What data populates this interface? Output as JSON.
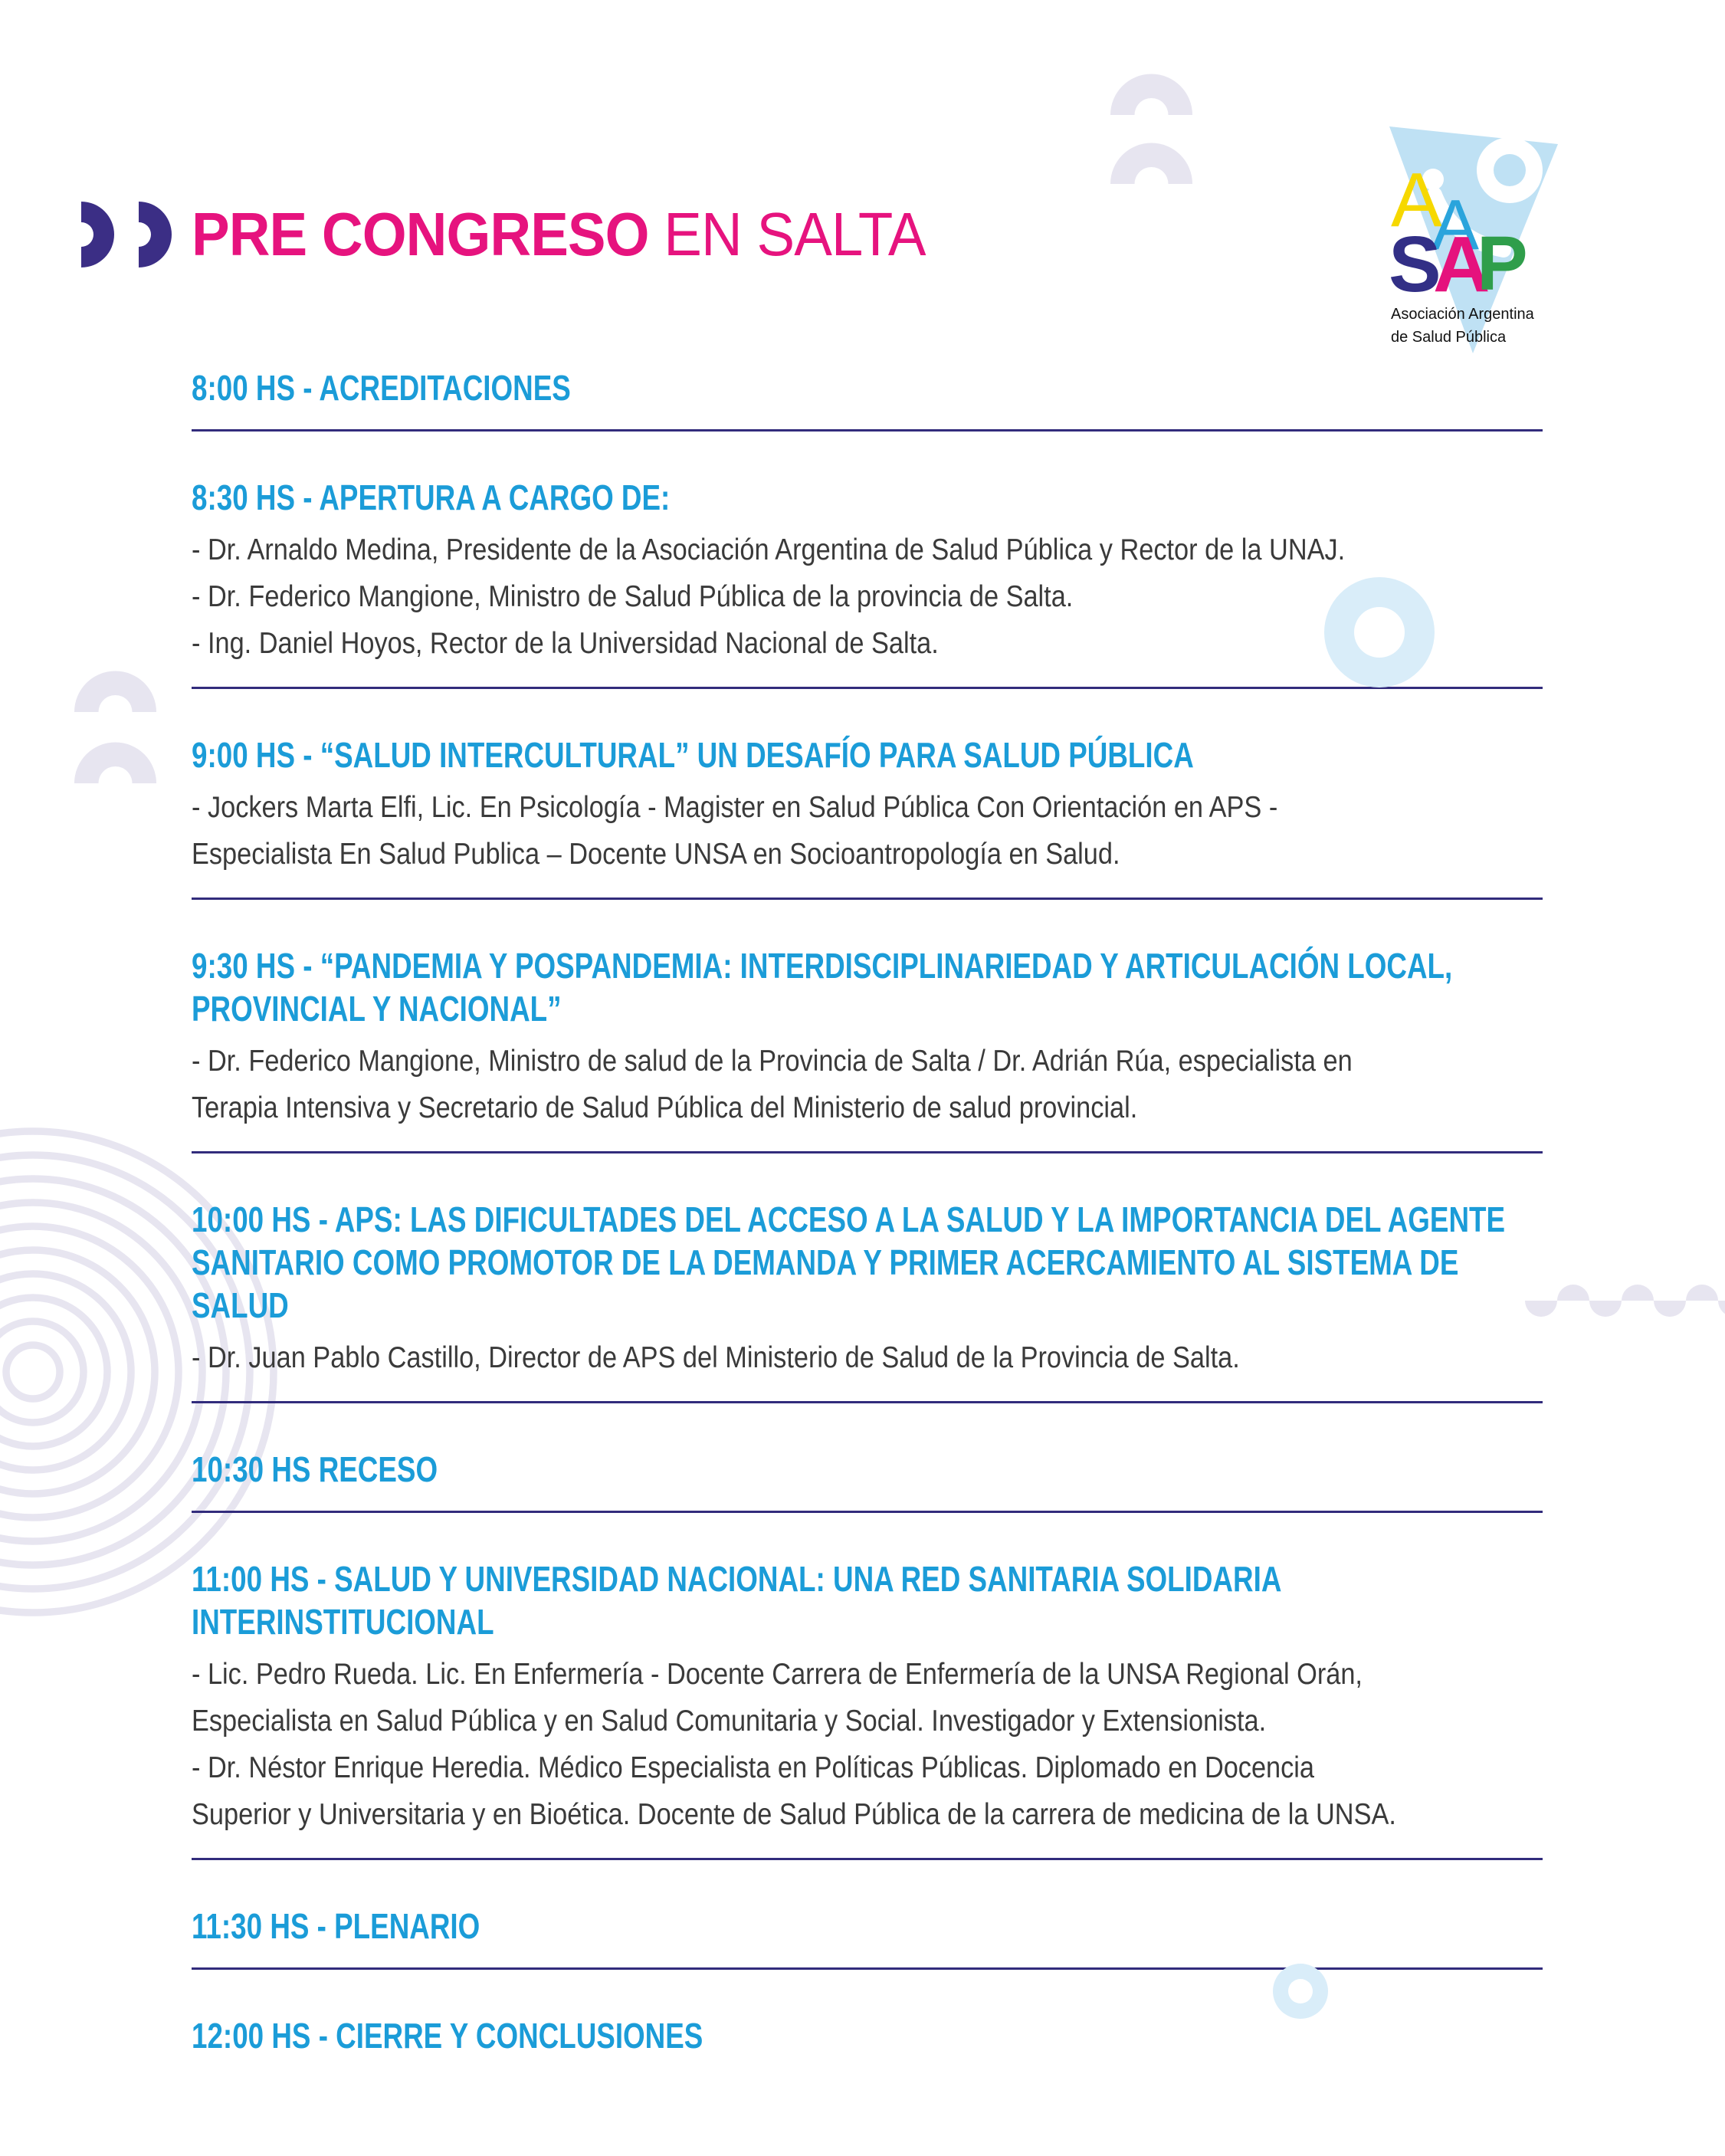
{
  "page": {
    "title_bold": "PRE CONGRESO",
    "title_light": " EN SALTA"
  },
  "logo": {
    "letters": [
      "A",
      "A",
      "S",
      "A",
      "P"
    ],
    "caption_line1": "Asociación Argentina",
    "caption_line2": "de Salud Pública"
  },
  "colors": {
    "heading_blue": "#1b9cd8",
    "title_magenta": "#e6137e",
    "divider_navy": "#322c7c",
    "body_gray": "#3a3a3a",
    "decoration_lavender": "#e7e5f0",
    "decoration_light_blue": "#d9edf9",
    "quote_purple": "#3b2e85",
    "logo_triangle_blue": "#bfe1f4",
    "logo_yellow": "#f6d800",
    "logo_blue": "#2aa4dc",
    "logo_navy": "#322f86",
    "logo_magenta": "#e5127d",
    "logo_green": "#2f9e4b"
  },
  "schedule": [
    {
      "heading": "8:00 HS - ACREDITACIONES",
      "lines": []
    },
    {
      "heading": "8:30 HS - APERTURA A CARGO DE:",
      "lines": [
        "- Dr. Arnaldo Medina, Presidente de la Asociación Argentina de Salud Pública y Rector de la UNAJ.",
        "- Dr. Federico Mangione, Ministro de Salud Pública de la provincia de Salta.",
        "- Ing. Daniel Hoyos, Rector de la Universidad Nacional de Salta."
      ]
    },
    {
      "heading": "9:00 HS - “SALUD INTERCULTURAL” UN DESAFÍO PARA SALUD PÚBLICA",
      "lines": [
        "- Jockers Marta Elfi, Lic. En Psicología - Magister en Salud Pública Con Orientación en APS -\nEspecialista En Salud Publica – Docente UNSA en Socioantropología en Salud."
      ]
    },
    {
      "heading": "9:30 HS - “PANDEMIA Y POSPANDEMIA: INTERDISCIPLINARIEDAD Y ARTICULACIÓN LOCAL,\nPROVINCIAL Y NACIONAL”",
      "lines": [
        "- Dr. Federico Mangione, Ministro de salud de la Provincia de Salta / Dr. Adrián Rúa, especialista en\nTerapia Intensiva y Secretario de Salud Pública del Ministerio de salud provincial."
      ]
    },
    {
      "heading": "10:00 HS - APS: LAS DIFICULTADES DEL ACCESO A LA SALUD Y LA IMPORTANCIA DEL AGENTE\nSANITARIO COMO PROMOTOR DE LA DEMANDA Y PRIMER ACERCAMIENTO AL SISTEMA DE\nSALUD",
      "lines": [
        "- Dr. Juan Pablo Castillo, Director de APS del Ministerio de Salud de la Provincia de Salta."
      ]
    },
    {
      "heading": "10:30 HS RECESO",
      "lines": []
    },
    {
      "heading": "11:00 HS - SALUD Y UNIVERSIDAD NACIONAL: UNA RED SANITARIA SOLIDARIA\nINTERINSTITUCIONAL",
      "lines": [
        "- Lic. Pedro Rueda. Lic. En Enfermería - Docente Carrera de Enfermería de la UNSA Regional Orán,\nEspecialista en Salud Pública y en Salud Comunitaria y Social. Investigador y Extensionista.",
        "- Dr. Néstor Enrique Heredia. Médico Especialista en Políticas Públicas. Diplomado en Docencia\nSuperior y Universitaria y en Bioética. Docente de Salud Pública de la carrera de medicina de la UNSA."
      ]
    },
    {
      "heading": "11:30 HS - PLENARIO",
      "lines": []
    },
    {
      "heading": "12:00 HS - CIERRE Y CONCLUSIONES",
      "lines": []
    }
  ]
}
